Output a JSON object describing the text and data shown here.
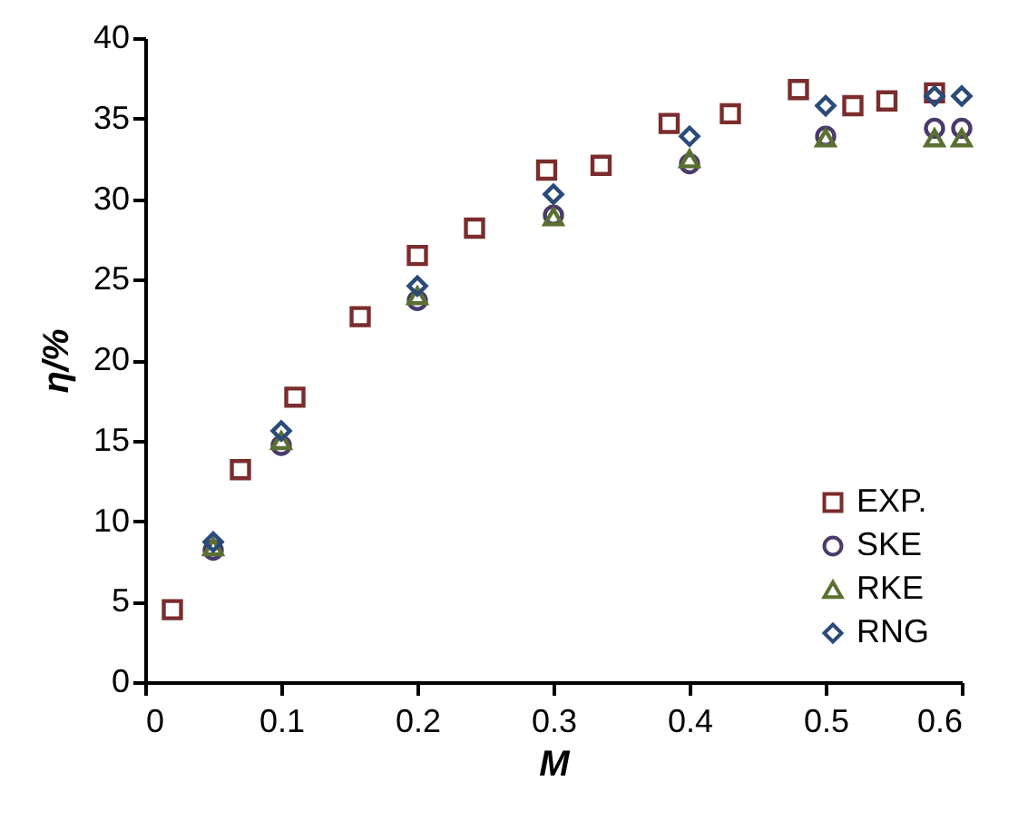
{
  "chart_data": {
    "type": "scatter",
    "xlabel": "M",
    "ylabel": "η/%",
    "xlim": [
      0,
      0.6
    ],
    "xticks": [
      0,
      0.1,
      0.2,
      0.3,
      0.4,
      0.5,
      0.6
    ],
    "ylim": [
      0,
      40
    ],
    "yticks": [
      0,
      5,
      10,
      15,
      20,
      25,
      30,
      35,
      40
    ],
    "grid": false,
    "legend": "bottom right",
    "series": [
      {
        "name": "EXP.",
        "color": "#7b2c2c",
        "marker": "square",
        "x": [
          0.02,
          0.07,
          0.11,
          0.158,
          0.2,
          0.242,
          0.295,
          0.335,
          0.385,
          0.43,
          0.48,
          0.52,
          0.545,
          0.58
        ],
        "values": [
          4.5,
          13.2,
          17.7,
          22.7,
          26.5,
          28.2,
          31.8,
          32.1,
          34.7,
          35.3,
          36.8,
          35.8,
          36.1,
          36.6
        ]
      },
      {
        "name": "SKE",
        "color": "#4b3a6b",
        "marker": "circle",
        "x": [
          0.05,
          0.1,
          0.2,
          0.3,
          0.4,
          0.5,
          0.58,
          0.6
        ],
        "values": [
          8.2,
          14.7,
          23.7,
          29.0,
          32.2,
          33.9,
          34.4,
          34.4
        ]
      },
      {
        "name": "RKE",
        "color": "#5a7030",
        "marker": "triangle",
        "x": [
          0.05,
          0.1,
          0.2,
          0.3,
          0.4,
          0.5,
          0.58,
          0.6
        ],
        "values": [
          8.4,
          15.0,
          24.0,
          28.9,
          32.5,
          33.8,
          33.8,
          33.8
        ]
      },
      {
        "name": "RNG",
        "color": "#2a4a7a",
        "marker": "diamond",
        "x": [
          0.05,
          0.1,
          0.2,
          0.3,
          0.4,
          0.5,
          0.58,
          0.6
        ],
        "values": [
          8.7,
          15.6,
          24.6,
          30.3,
          33.9,
          35.8,
          36.4,
          36.4
        ]
      }
    ]
  }
}
